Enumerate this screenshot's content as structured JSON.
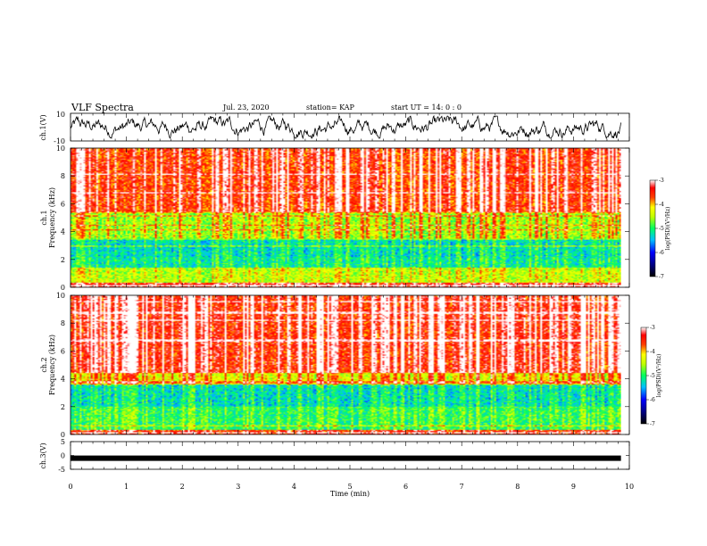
{
  "header": {
    "title": "VLF Spectra",
    "date": "Jul. 23, 2020",
    "station": "station= KAP",
    "start": "start UT =  14: 0  : 0"
  },
  "chart_data": [
    {
      "type": "line",
      "ylabel": "ch.1(V)",
      "ylim": [
        -10,
        10
      ],
      "yticks": [
        "10",
        "-10"
      ],
      "description_values": "noisy waveform oscillating roughly between -8 and 8 V",
      "xlim": [
        0,
        10
      ]
    },
    {
      "type": "heatmap",
      "ylabel_top": "ch.1",
      "ylabel": "Frequency (kHz)",
      "ylim": [
        0,
        10
      ],
      "yticks": [
        "0",
        "2",
        "4",
        "6",
        "8",
        "10"
      ],
      "xlim": [
        0,
        9.85
      ],
      "colorbar": {
        "label": "log(PSD)(V²/Hz)",
        "ticks": [
          "-3",
          "-4",
          "-5",
          "-6",
          "-7"
        ],
        "range": [
          -7,
          -3
        ]
      },
      "bands": [
        {
          "f0": 0.0,
          "f1": 0.3,
          "level": -3.4
        },
        {
          "f0": 0.3,
          "f1": 1.4,
          "level": -4.5
        },
        {
          "f0": 1.4,
          "f1": 2.2,
          "level": -5.2
        },
        {
          "f0": 2.2,
          "f1": 3.5,
          "level": -5.3
        },
        {
          "f0": 3.5,
          "f1": 5.4,
          "level": -4.6
        },
        {
          "f0": 5.4,
          "f1": 10.0,
          "level": -3.6
        }
      ]
    },
    {
      "type": "heatmap",
      "ylabel_top": "ch.2",
      "ylabel": "Frequency (kHz)",
      "ylim": [
        0,
        10
      ],
      "yticks": [
        "0",
        "2",
        "4",
        "6",
        "8",
        "10"
      ],
      "xlim": [
        0,
        9.85
      ],
      "colorbar": {
        "label": "log(PSD)(V²/Hz)",
        "ticks": [
          "-3",
          "-4",
          "-5",
          "-6",
          "-7"
        ],
        "range": [
          -7,
          -3
        ]
      },
      "bands": [
        {
          "f0": 0.0,
          "f1": 0.3,
          "level": -3.6
        },
        {
          "f0": 0.3,
          "f1": 2.0,
          "level": -5.0
        },
        {
          "f0": 2.0,
          "f1": 3.6,
          "level": -5.3
        },
        {
          "f0": 3.6,
          "f1": 4.4,
          "level": -4.3
        },
        {
          "f0": 4.4,
          "f1": 10.0,
          "level": -3.5
        }
      ]
    },
    {
      "type": "line",
      "ylabel": "ch.3(V)",
      "ylim": [
        -5,
        5
      ],
      "yticks": [
        "5",
        "0",
        "-5"
      ],
      "y": -1.0,
      "xlim": [
        0,
        9.85
      ]
    }
  ],
  "xaxis": {
    "label": "Time (min)",
    "ticks": [
      "0",
      "1",
      "2",
      "3",
      "4",
      "5",
      "6",
      "7",
      "8",
      "9",
      "10"
    ],
    "range": [
      0,
      10
    ]
  }
}
